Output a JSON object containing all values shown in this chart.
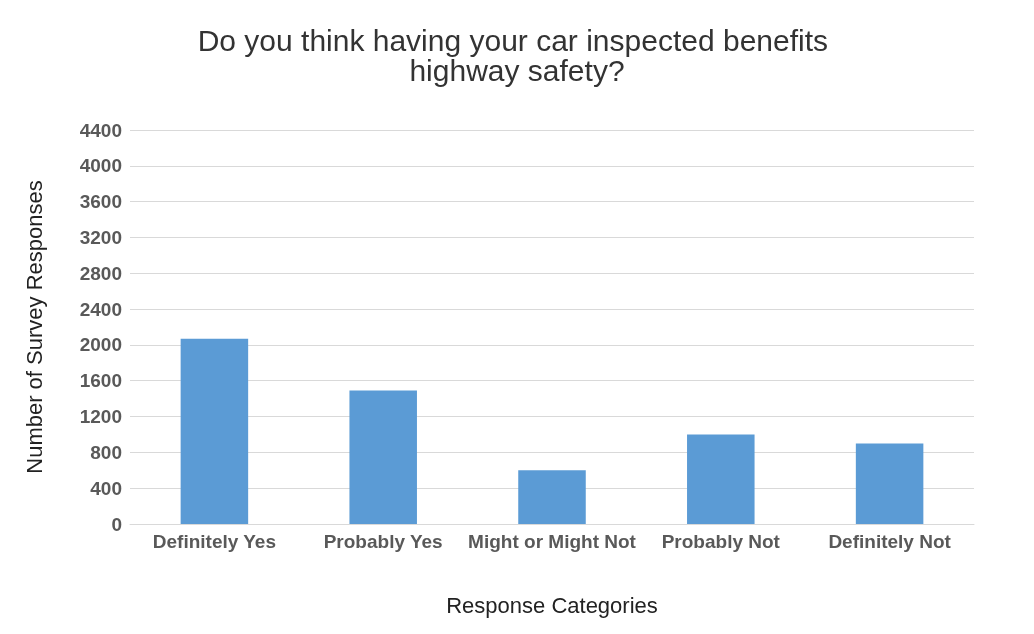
{
  "chart_data": {
    "type": "bar",
    "title": "Do you think having your car inspected benefits highway safety?",
    "xlabel": "Response Categories",
    "ylabel": "Number of Survey Responses",
    "categories": [
      "Definitely Yes",
      "Probably Yes",
      "Might or Might Not",
      "Probably Not",
      "Definitely Not"
    ],
    "values": [
      2070,
      1490,
      600,
      1000,
      900
    ],
    "color": "#5b9bd5",
    "ylim": [
      0,
      4400
    ],
    "yticks": [
      0,
      400,
      800,
      1200,
      1600,
      2000,
      2400,
      2800,
      3200,
      3600,
      4000,
      4400
    ],
    "grid": "y"
  }
}
